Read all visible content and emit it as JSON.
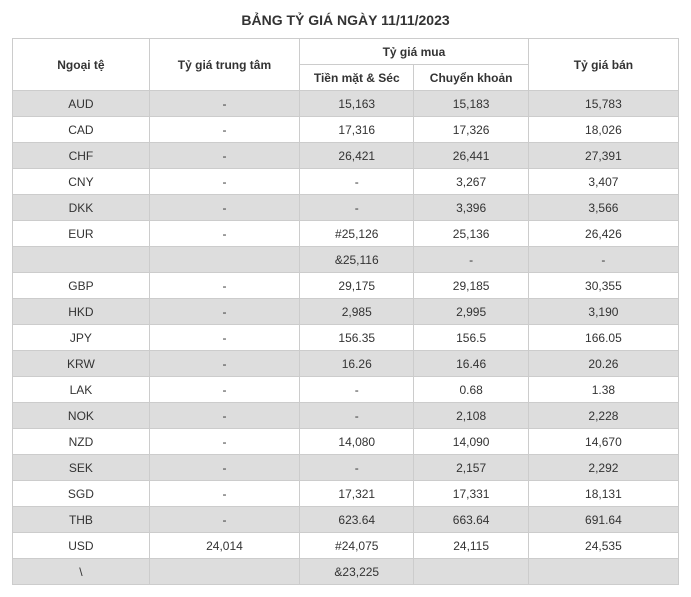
{
  "title": "BẢNG TỶ GIÁ NGÀY 11/11/2023",
  "headers": {
    "currency": "Ngoại tệ",
    "central": "Tỷ giá trung tâm",
    "buy_group": "Tỷ giá mua",
    "buy_cash": "Tiền mặt & Séc",
    "buy_transfer": "Chuyển khoản",
    "sell": "Tỷ giá bán"
  },
  "rows": [
    {
      "currency": "AUD",
      "central": "-",
      "buy_cash": "15,163",
      "buy_transfer": "15,183",
      "sell": "15,783"
    },
    {
      "currency": "CAD",
      "central": "-",
      "buy_cash": "17,316",
      "buy_transfer": "17,326",
      "sell": "18,026"
    },
    {
      "currency": "CHF",
      "central": "-",
      "buy_cash": "26,421",
      "buy_transfer": "26,441",
      "sell": "27,391"
    },
    {
      "currency": "CNY",
      "central": "-",
      "buy_cash": "-",
      "buy_transfer": "3,267",
      "sell": "3,407"
    },
    {
      "currency": "DKK",
      "central": "-",
      "buy_cash": "-",
      "buy_transfer": "3,396",
      "sell": "3,566"
    },
    {
      "currency": "EUR",
      "central": "-",
      "buy_cash": "#25,126",
      "buy_transfer": "25,136",
      "sell": "26,426"
    },
    {
      "currency": "",
      "central": "",
      "buy_cash": "&25,116",
      "buy_transfer": "-",
      "sell": "-"
    },
    {
      "currency": "GBP",
      "central": "-",
      "buy_cash": "29,175",
      "buy_transfer": "29,185",
      "sell": "30,355"
    },
    {
      "currency": "HKD",
      "central": "-",
      "buy_cash": "2,985",
      "buy_transfer": "2,995",
      "sell": "3,190"
    },
    {
      "currency": "JPY",
      "central": "-",
      "buy_cash": "156.35",
      "buy_transfer": "156.5",
      "sell": "166.05"
    },
    {
      "currency": "KRW",
      "central": "-",
      "buy_cash": "16.26",
      "buy_transfer": "16.46",
      "sell": "20.26"
    },
    {
      "currency": "LAK",
      "central": "-",
      "buy_cash": "-",
      "buy_transfer": "0.68",
      "sell": "1.38"
    },
    {
      "currency": "NOK",
      "central": "-",
      "buy_cash": "-",
      "buy_transfer": "2,108",
      "sell": "2,228"
    },
    {
      "currency": "NZD",
      "central": "-",
      "buy_cash": "14,080",
      "buy_transfer": "14,090",
      "sell": "14,670"
    },
    {
      "currency": "SEK",
      "central": "-",
      "buy_cash": "-",
      "buy_transfer": "2,157",
      "sell": "2,292"
    },
    {
      "currency": "SGD",
      "central": "-",
      "buy_cash": "17,321",
      "buy_transfer": "17,331",
      "sell": "18,131"
    },
    {
      "currency": "THB",
      "central": "-",
      "buy_cash": "623.64",
      "buy_transfer": "663.64",
      "sell": "691.64"
    },
    {
      "currency": "USD",
      "central": "24,014",
      "buy_cash": "#24,075",
      "buy_transfer": "24,115",
      "sell": "24,535"
    },
    {
      "currency": "\\",
      "central": "",
      "buy_cash": "&23,225",
      "buy_transfer": "",
      "sell": ""
    }
  ]
}
